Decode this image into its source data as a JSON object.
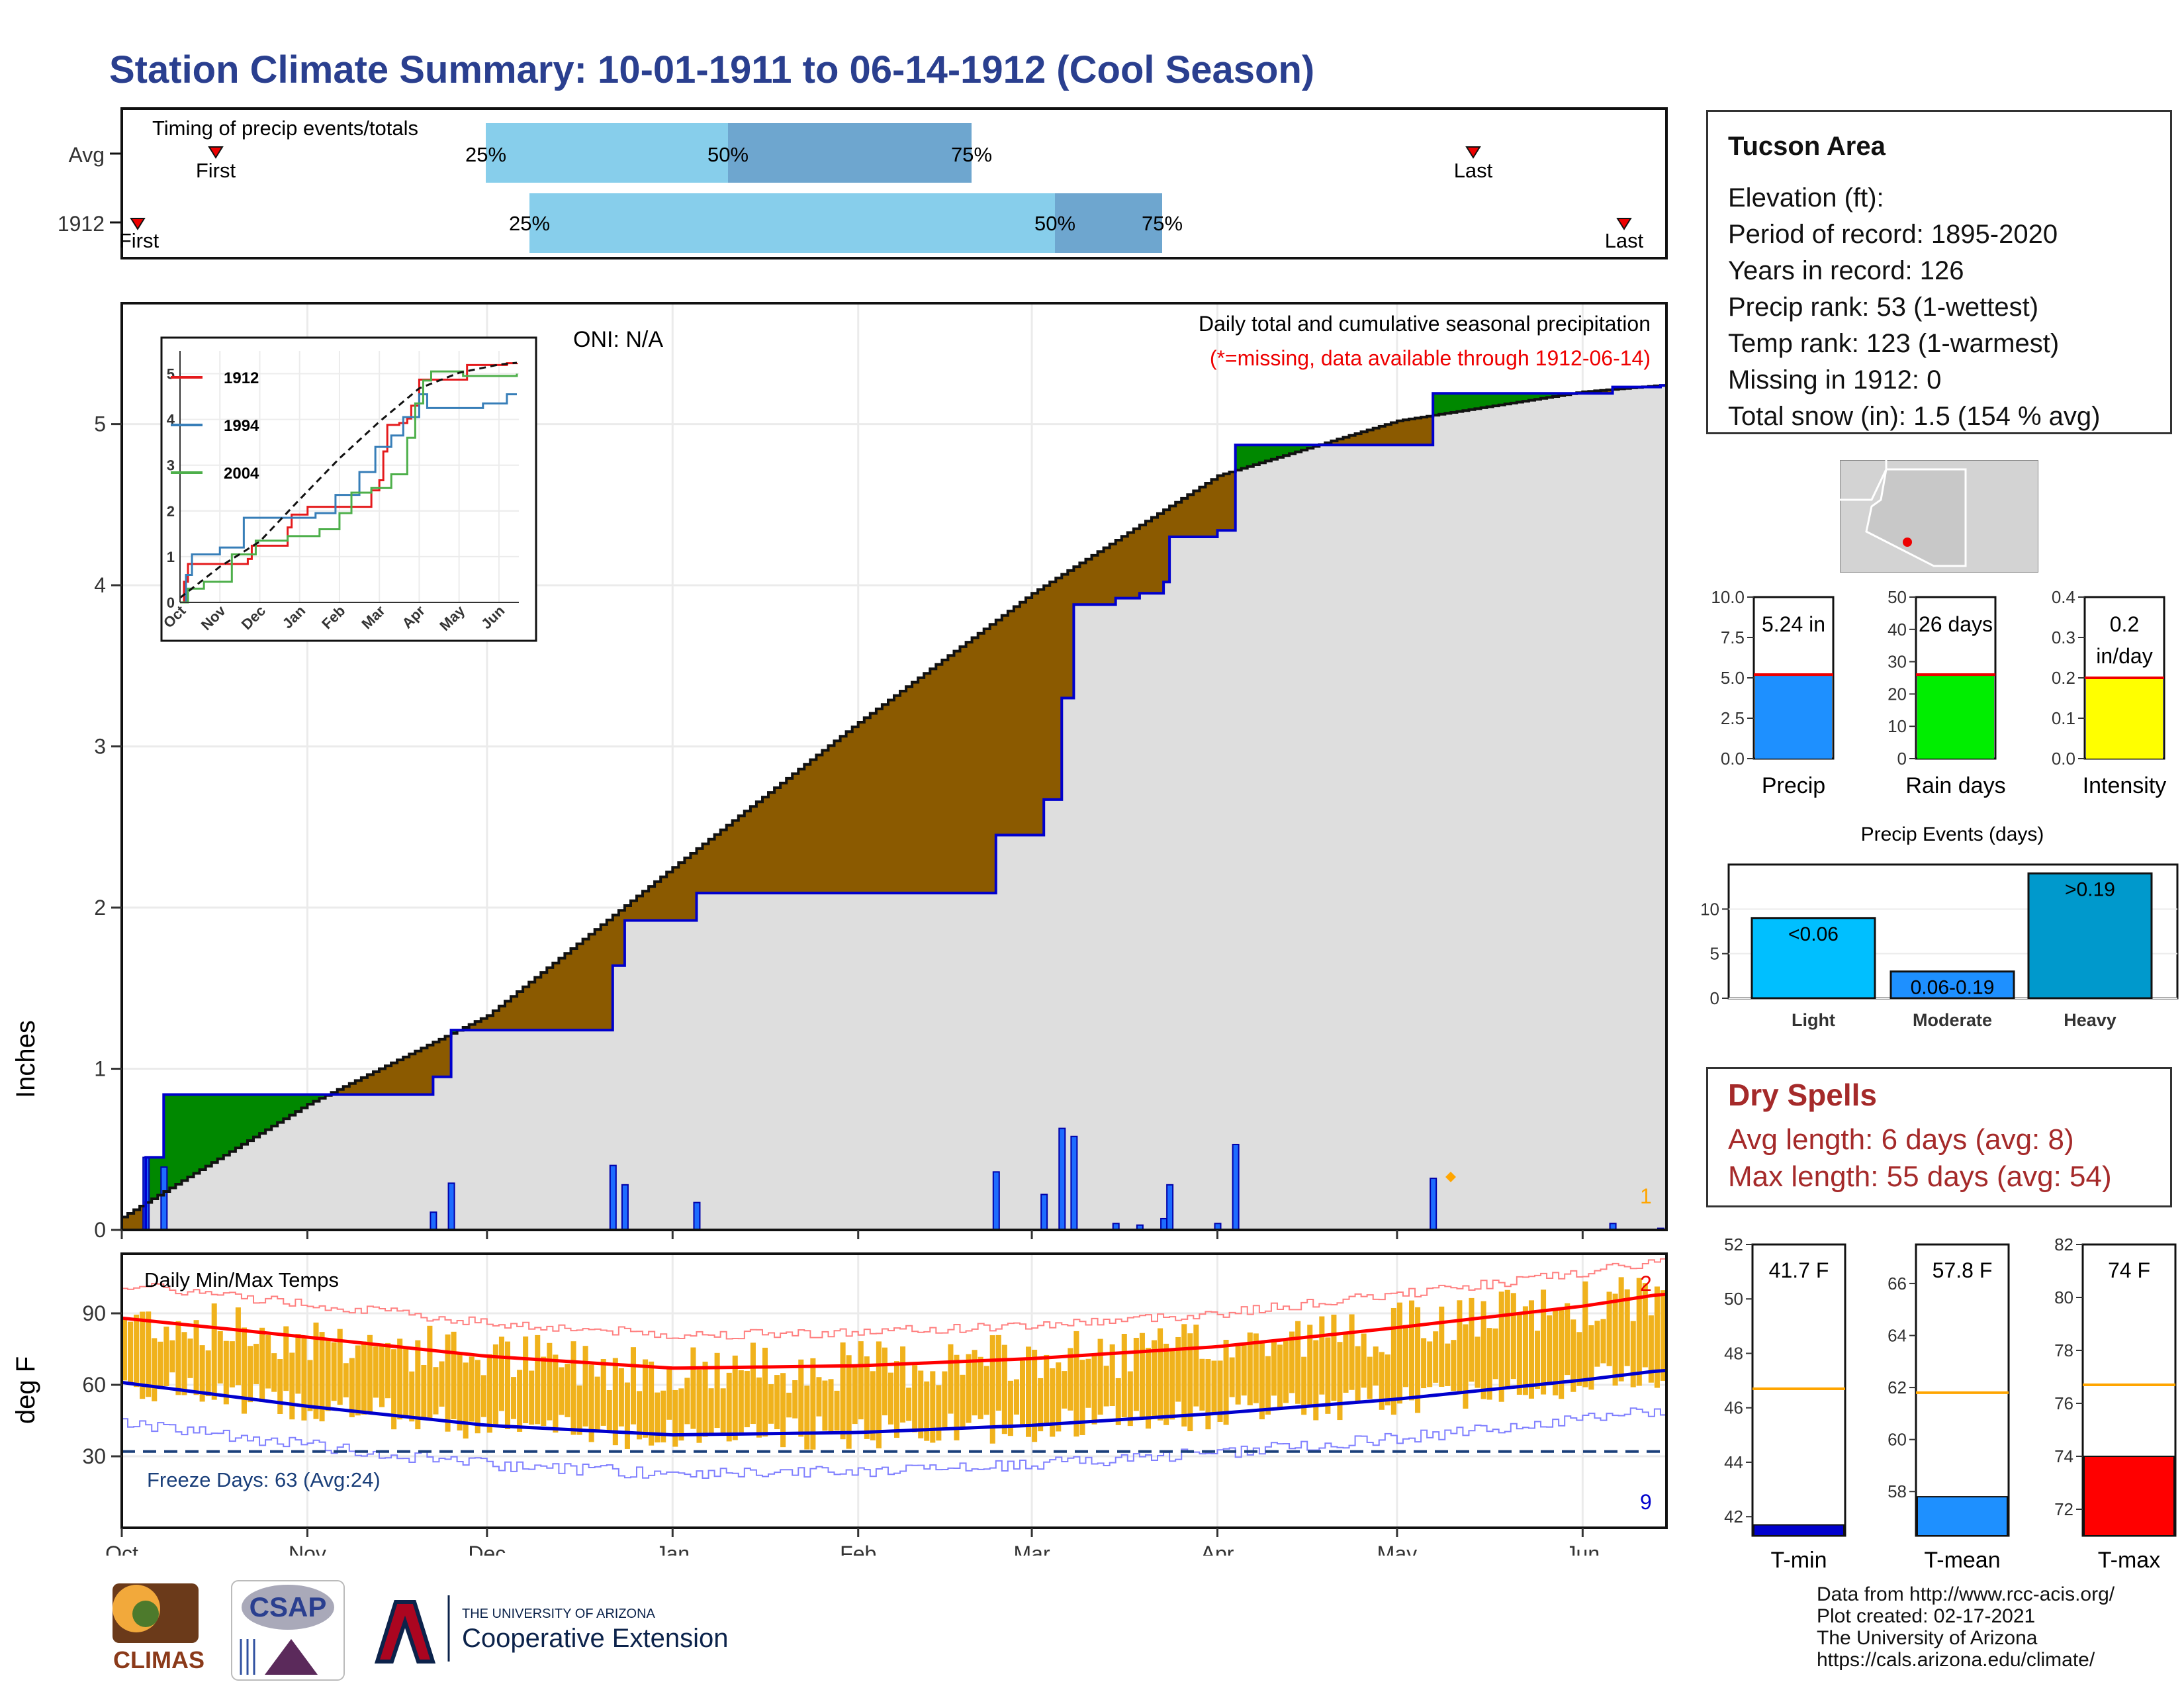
{
  "title": "Station Climate Summary: 10-01-1911 to 06-14-1912 (Cool Season)",
  "timing": {
    "label": "Timing of precip events/totals",
    "rows": [
      {
        "name": "Avg",
        "first_label": "First",
        "last_label": "Last",
        "p25": "25%",
        "p50": "50%",
        "p75": "75%"
      },
      {
        "name": "1912",
        "first_label": "First",
        "last_label": "Last",
        "p25": "25%",
        "p50": "50%",
        "p75": "75%"
      }
    ]
  },
  "main": {
    "ylabel": "Inches",
    "yticks": [
      "0",
      "1",
      "2",
      "3",
      "4",
      "5"
    ],
    "oni": "ONI: N/A",
    "desc": "Daily total and cumulative seasonal precipitation",
    "missing_note": "(*=missing, data available through 1912-06-14)",
    "missing_count": "1"
  },
  "inset": {
    "yticks": [
      "0",
      "1",
      "2",
      "3",
      "4",
      "5"
    ],
    "months": [
      "Oct",
      "Nov",
      "Dec",
      "Jan",
      "Feb",
      "Mar",
      "Apr",
      "May",
      "Jun"
    ],
    "legend": [
      {
        "name": "1912",
        "color": "#e41a1c"
      },
      {
        "name": "1994",
        "color": "#377eb8"
      },
      {
        "name": "2004",
        "color": "#4daf4a"
      }
    ]
  },
  "temps": {
    "ylabel": "deg F",
    "label": "Daily Min/Max Temps",
    "yticks": [
      "30",
      "60",
      "90"
    ],
    "freeze": "Freeze Days: 63 (Avg:24)",
    "count_top": "2",
    "count_bottom": "9",
    "xmonths": [
      "Oct",
      "Nov",
      "Dec",
      "Jan",
      "Feb",
      "Mar",
      "Apr",
      "May",
      "Jun"
    ]
  },
  "info": {
    "header": "Tucson Area",
    "lines": [
      "Elevation (ft):",
      "Period of record: 1895-2020",
      "Years in record: 126",
      "Precip rank: 53 (1-wettest)",
      "Temp rank: 123 (1-warmest)",
      "Missing in 1912: 0",
      "Total snow (in): 1.5 (154 % avg)"
    ]
  },
  "gauges": [
    {
      "name": "Precip",
      "value_label": "5.24 in",
      "value": 5.24,
      "avg": 5.2,
      "max": 10.0,
      "ticks": [
        "0.0",
        "2.5",
        "5.0",
        "7.5",
        "10.0"
      ],
      "color": "#1e90ff"
    },
    {
      "name": "Rain days",
      "value_label": "26 days",
      "value": 26,
      "avg": 26,
      "max": 50,
      "ticks": [
        "0",
        "10",
        "20",
        "30",
        "40",
        "50"
      ],
      "color": "#00ee00"
    },
    {
      "name": "Intensity",
      "value_label": "0.2 in/day",
      "value_line1": "0.2",
      "value_line2": "in/day",
      "value": 0.2,
      "avg": 0.2,
      "max": 0.4,
      "ticks": [
        "0.0",
        "0.1",
        "0.2",
        "0.3",
        "0.4"
      ],
      "color": "#ffff00"
    }
  ],
  "events": {
    "title": "Precip Events (days)",
    "yticks": [
      "0",
      "5",
      "10"
    ],
    "categories": [
      "Light",
      "Moderate",
      "Heavy"
    ],
    "bar_labels": [
      "<0.06",
      "0.06-0.19",
      ">0.19"
    ],
    "values": [
      9,
      3,
      14
    ],
    "colors": [
      "#00bfff",
      "#1e90ff",
      "#0099cc"
    ]
  },
  "dry": {
    "header": "Dry Spells",
    "avg": "Avg length: 6 days (avg: 8)",
    "max": "Max length: 55 days (avg: 54)"
  },
  "temp_gauges": [
    {
      "name": "T-min",
      "value_label": "41.7 F",
      "value": 41.7,
      "avg": 46.7,
      "min": 41.3,
      "max": 52.0,
      "ticks": [
        "42",
        "44",
        "46",
        "48",
        "50",
        "52"
      ],
      "color": "#0000cd"
    },
    {
      "name": "T-mean",
      "value_label": "57.8 F",
      "value": 57.8,
      "avg": 61.8,
      "min": 56.3,
      "max": 67.5,
      "ticks": [
        "58",
        "60",
        "62",
        "64",
        "66"
      ],
      "color": "#1e90ff"
    },
    {
      "name": "T-max",
      "value_label": "74 F",
      "value": 74.0,
      "avg": 76.7,
      "min": 71.0,
      "max": 82.0,
      "ticks": [
        "72",
        "74",
        "76",
        "78",
        "80",
        "82"
      ],
      "color": "#ff0000"
    }
  ],
  "credits": [
    "Data from http://www.rcc-acis.org/",
    "Plot created: 02-17-2021",
    "The University of Arizona",
    "https://cals.arizona.edu/climate/"
  ],
  "logos": {
    "climas": "CLIMAS",
    "csap": "CSAP",
    "ua_line1": "THE UNIVERSITY OF ARIZONA",
    "ua_line2": "Cooperative Extension"
  },
  "chart_data": {
    "type": "area",
    "title": "Daily total and cumulative seasonal precipitation",
    "ylabel": "Inches",
    "ylim": [
      0,
      5.75
    ],
    "season_1912_cumulative": {
      "dates": [
        "1911-10-01",
        "1911-10-05",
        "1911-10-08",
        "1911-11-22",
        "1911-11-25",
        "1911-12-18",
        "1911-12-22",
        "1911-12-24",
        "1912-01-05",
        "1912-02-24",
        "1912-03-02",
        "1912-03-03",
        "1912-03-06",
        "1912-03-08",
        "1912-03-15",
        "1912-03-19",
        "1912-03-23",
        "1912-03-24",
        "1912-04-01",
        "1912-04-04",
        "1912-05-07",
        "1912-06-06",
        "1912-06-14"
      ],
      "values": [
        0.0,
        0.45,
        0.84,
        0.95,
        1.24,
        1.24,
        1.64,
        1.92,
        2.09,
        2.45,
        2.45,
        2.67,
        3.3,
        3.88,
        3.92,
        3.95,
        4.02,
        4.3,
        4.34,
        4.87,
        5.19,
        5.23,
        5.24
      ]
    },
    "avg_cumulative": {
      "dates": [
        "1911-10-01",
        "1911-11-01",
        "1911-12-01",
        "1912-01-01",
        "1912-02-01",
        "1912-03-01",
        "1912-04-01",
        "1912-05-01",
        "1912-06-01",
        "1912-06-14"
      ],
      "values": [
        0.08,
        0.78,
        1.33,
        2.25,
        3.15,
        3.95,
        4.68,
        5.02,
        5.2,
        5.24
      ]
    },
    "temps": {
      "ylim": [
        0,
        115
      ],
      "freeze_line": 32,
      "avg_max": {
        "dates": [
          "1911-10-01",
          "1911-11-01",
          "1911-12-01",
          "1912-01-01",
          "1912-02-01",
          "1912-03-01",
          "1912-04-01",
          "1912-05-01",
          "1912-06-01",
          "1912-06-14"
        ],
        "values": [
          88,
          80,
          72,
          67,
          68,
          71,
          76,
          84,
          93,
          98
        ]
      },
      "avg_min": {
        "dates": [
          "1911-10-01",
          "1911-11-01",
          "1911-12-01",
          "1912-01-01",
          "1912-02-01",
          "1912-03-01",
          "1912-04-01",
          "1912-05-01",
          "1912-06-01",
          "1912-06-14"
        ],
        "values": [
          61,
          51,
          43,
          39,
          40,
          43,
          48,
          54,
          62,
          66
        ]
      }
    },
    "inset": {
      "type": "line",
      "xlim": [
        0,
        8.5
      ],
      "ylim": [
        0,
        5.5
      ],
      "series": [
        {
          "name": "1912",
          "x": [
            0.0,
            0.1,
            0.2,
            1.7,
            1.8,
            2.6,
            2.7,
            2.8,
            3.2,
            4.8,
            5.0,
            5.1,
            5.2,
            5.5,
            5.7,
            5.8,
            6.0,
            7.2,
            8.2,
            8.45
          ],
          "y": [
            0.0,
            0.45,
            0.84,
            0.95,
            1.24,
            1.24,
            1.64,
            1.92,
            2.09,
            2.45,
            2.67,
            3.3,
            3.88,
            3.92,
            4.02,
            4.3,
            4.87,
            5.19,
            5.23,
            5.24
          ]
        },
        {
          "name": "1994",
          "x": [
            0.0,
            0.15,
            0.3,
            1.0,
            1.6,
            2.5,
            3.4,
            3.9,
            4.5,
            4.9,
            5.3,
            5.6,
            6.0,
            6.2,
            7.6,
            8.2,
            8.45
          ],
          "y": [
            0.0,
            0.6,
            1.05,
            1.2,
            1.85,
            1.85,
            1.95,
            2.35,
            2.85,
            3.4,
            3.65,
            4.05,
            4.55,
            4.25,
            4.35,
            4.55,
            4.55
          ]
        },
        {
          "name": "2004",
          "x": [
            0.0,
            0.2,
            0.6,
            1.3,
            1.9,
            2.7,
            3.5,
            4.0,
            4.3,
            4.8,
            5.3,
            5.7,
            5.9,
            6.1,
            6.3,
            6.7,
            7.1,
            8.45
          ],
          "y": [
            0.0,
            0.3,
            0.45,
            1.05,
            1.35,
            1.45,
            1.6,
            1.95,
            2.4,
            2.5,
            2.8,
            3.6,
            4.35,
            4.85,
            5.05,
            5.05,
            4.95,
            5.0
          ]
        },
        {
          "name": "avg",
          "x": [
            0.0,
            1.0,
            2.0,
            3.0,
            4.0,
            5.0,
            6.0,
            7.0,
            8.0,
            8.45
          ],
          "y": [
            0.1,
            0.78,
            1.33,
            2.25,
            3.15,
            3.95,
            4.68,
            5.02,
            5.2,
            5.24
          ]
        }
      ]
    }
  }
}
